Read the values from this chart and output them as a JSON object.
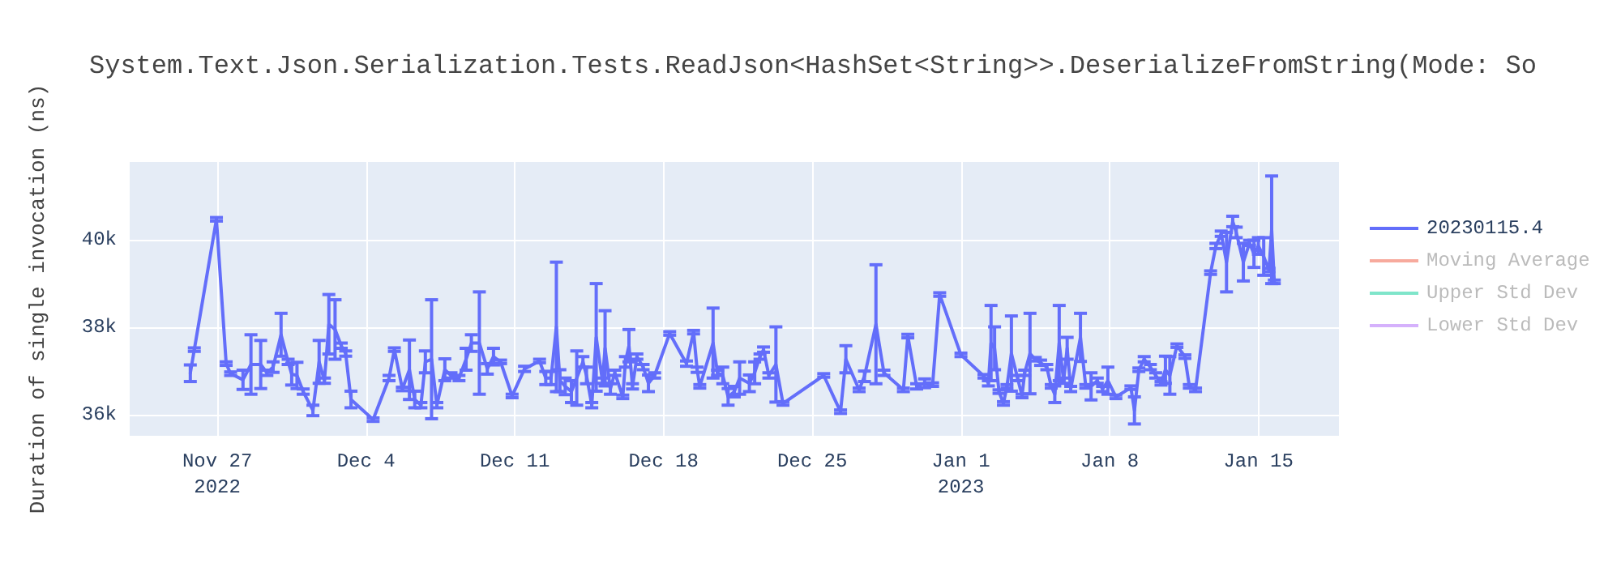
{
  "chart_data": {
    "type": "line",
    "title": "System.Text.Json.Serialization.Tests.ReadJson<HashSet<String>>.DeserializeFromString(Mode: So",
    "ylabel": "Duration of single invocation (ns)",
    "xlim": [
      "2022-11-22T21:00",
      "2023-01-18T19:00"
    ],
    "xticks": [
      {
        "value": "2022-11-27",
        "label": "Nov 27\n2022"
      },
      {
        "value": "2022-12-04",
        "label": "Dec 4"
      },
      {
        "value": "2022-12-11",
        "label": "Dec 11"
      },
      {
        "value": "2022-12-18",
        "label": "Dec 18"
      },
      {
        "value": "2022-12-25",
        "label": "Dec 25"
      },
      {
        "value": "2023-01-01",
        "label": "Jan 1\n2023"
      },
      {
        "value": "2023-01-08",
        "label": "Jan 8"
      },
      {
        "value": "2023-01-15",
        "label": "Jan 15"
      }
    ],
    "ylim": [
      35520,
      41780
    ],
    "yticks": [
      {
        "value": 36000,
        "label": "36k"
      },
      {
        "value": 38000,
        "label": "38k"
      },
      {
        "value": 40000,
        "label": "40k"
      }
    ],
    "grid": true,
    "legend": "top right",
    "marker": "none",
    "line_style": "solid",
    "series": [
      {
        "name": "20230115.4",
        "color": "#636efa",
        "x": [
          "2022-11-25T17:30",
          "2022-11-25T22:00",
          "2022-11-26T23:00",
          "2022-11-27T10:00",
          "2022-11-27T15:00",
          "2022-11-28T05:00",
          "2022-11-28T14:00",
          "2022-11-29T01:00",
          "2022-11-29T08:00",
          "2022-11-29T15:00",
          "2022-11-30T00:00",
          "2022-11-30T08:00",
          "2022-11-30T12:00",
          "2022-11-30T18:00",
          "2022-12-01T01:00",
          "2022-12-01T12:00",
          "2022-12-01T19:00",
          "2022-12-02T01:00",
          "2022-12-02T06:00",
          "2022-12-02T13:00",
          "2022-12-02T20:00",
          "2022-12-03T01:00",
          "2022-12-03T07:00",
          "2022-12-04T08:00",
          "2022-12-05T02:00",
          "2022-12-05T08:00",
          "2022-12-05T17:00",
          "2022-12-06T01:00",
          "2022-12-06T07:00",
          "2022-12-06T14:00",
          "2022-12-06T19:00",
          "2022-12-07T02:00",
          "2022-12-07T08:00",
          "2022-12-07T17:00",
          "2022-12-08T00:00",
          "2022-12-08T09:00",
          "2022-12-08T17:00",
          "2022-12-08T23:00",
          "2022-12-09T08:00",
          "2022-12-09T17:00",
          "2022-12-10T00:00",
          "2022-12-10T08:00",
          "2022-12-10T21:00",
          "2022-12-11T11:00",
          "2022-12-12T04:00",
          "2022-12-12T11:00",
          "2022-12-12T17:00",
          "2022-12-12T23:00",
          "2022-12-13T03:00",
          "2022-12-13T09:00",
          "2022-12-13T16:00",
          "2022-12-13T22:00",
          "2022-12-14T05:00",
          "2022-12-14T09:00",
          "2022-12-14T15:00",
          "2022-12-14T20:00",
          "2022-12-15T03:00",
          "2022-12-15T06:00",
          "2022-12-15T12:00",
          "2022-12-15T17:00",
          "2022-12-16T02:00",
          "2022-12-16T05:00",
          "2022-12-16T09:00",
          "2022-12-16T13:00",
          "2022-12-16T18:00",
          "2022-12-17T01:00",
          "2022-12-17T07:00",
          "2022-12-17T14:00",
          "2022-12-18T07:00",
          "2022-12-19T02:00",
          "2022-12-19T10:00",
          "2022-12-19T14:00",
          "2022-12-19T17:00",
          "2022-12-20T08:00",
          "2022-12-20T13:00",
          "2022-12-20T19:00",
          "2022-12-21T01:00",
          "2022-12-21T08:00",
          "2022-12-21T14:00",
          "2022-12-22T01:00",
          "2022-12-22T07:00",
          "2022-12-22T13:00",
          "2022-12-22T17:00",
          "2022-12-22T23:00",
          "2022-12-23T07:00",
          "2022-12-23T15:00",
          "2022-12-25T13:00",
          "2022-12-26T08:00",
          "2022-12-26T14:00",
          "2022-12-27T05:00",
          "2022-12-27T11:00",
          "2022-12-28T00:00",
          "2022-12-28T09:00",
          "2022-12-29T07:00",
          "2022-12-29T12:00",
          "2022-12-29T22:00",
          "2022-12-30T07:00",
          "2022-12-30T16:00",
          "2022-12-31T00:00",
          "2023-01-01T00:00",
          "2023-01-02T02:00",
          "2023-01-02T07:00",
          "2023-01-02T10:00",
          "2023-01-02T14:00",
          "2023-01-02T19:00",
          "2023-01-03T00:00",
          "2023-01-03T04:00",
          "2023-01-03T09:00",
          "2023-01-03T16:00",
          "2023-01-03T21:00",
          "2023-01-04T00:00",
          "2023-01-04T06:00",
          "2023-01-04T12:00",
          "2023-01-04T18:00",
          "2023-01-05T01:00",
          "2023-01-05T06:00",
          "2023-01-05T10:00",
          "2023-01-05T15:00",
          "2023-01-05T20:00",
          "2023-01-06T00:00",
          "2023-01-06T04:00",
          "2023-01-06T15:00",
          "2023-01-06T21:00",
          "2023-01-07T03:00",
          "2023-01-07T10:00",
          "2023-01-07T16:00",
          "2023-01-07T22:00",
          "2023-01-08T07:00",
          "2023-01-09T00:00",
          "2023-01-09T04:00",
          "2023-01-09T09:00",
          "2023-01-09T15:00",
          "2023-01-09T22:00",
          "2023-01-10T04:00",
          "2023-01-10T10:00",
          "2023-01-10T15:00",
          "2023-01-10T20:00",
          "2023-01-11T04:00",
          "2023-01-11T13:00",
          "2023-01-11T18:00",
          "2023-01-12T01:00",
          "2023-01-12T18:00",
          "2023-01-13T00:00",
          "2023-01-13T06:00",
          "2023-01-13T12:00",
          "2023-01-13T19:00",
          "2023-01-13T23:00",
          "2023-01-14T07:00",
          "2023-01-14T14:00",
          "2023-01-14T19:00",
          "2023-01-15T00:00",
          "2023-01-15T06:00",
          "2023-01-15T12:00",
          "2023-01-15T15:00",
          "2023-01-15T18:00"
        ],
        "values": [
          36950,
          37490,
          40470,
          37170,
          36940,
          36800,
          37150,
          37150,
          36960,
          37090,
          37830,
          37210,
          36930,
          36900,
          36530,
          36100,
          37210,
          36780,
          38070,
          37950,
          37580,
          37400,
          36350,
          35890,
          36840,
          37490,
          36590,
          37030,
          36350,
          36220,
          37210,
          37270,
          36220,
          37030,
          36900,
          36840,
          37270,
          37640,
          37640,
          37050,
          37330,
          37210,
          36430,
          37050,
          37230,
          36840,
          36840,
          38010,
          36780,
          36650,
          36530,
          36840,
          37210,
          36900,
          36220,
          37770,
          36780,
          37520,
          36590,
          36960,
          36410,
          37210,
          37580,
          36650,
          37330,
          37090,
          36720,
          36900,
          37860,
          37170,
          37890,
          37030,
          36650,
          37640,
          36960,
          36900,
          36410,
          36530,
          36840,
          36720,
          36960,
          37330,
          37490,
          36900,
          37150,
          36260,
          36900,
          36070,
          37270,
          36570,
          36880,
          38070,
          36960,
          36570,
          37800,
          36650,
          36720,
          36690,
          38750,
          37370,
          36880,
          36720,
          37640,
          37520,
          36530,
          36260,
          36650,
          37400,
          36840,
          36430,
          36960,
          37400,
          37270,
          37190,
          37090,
          36650,
          36470,
          37640,
          36780,
          37520,
          36590,
          37770,
          36650,
          36650,
          36780,
          36590,
          36780,
          36410,
          36620,
          36100,
          37030,
          37270,
          37090,
          36900,
          36720,
          37030,
          36900,
          37580,
          37330,
          36650,
          36570,
          39250,
          39860,
          40140,
          39490,
          40420,
          40170,
          39490,
          39930,
          39680,
          39860,
          39620,
          39310,
          40230,
          39040
        ],
        "errors": [
          190,
          40,
          40,
          40,
          40,
          220,
          680,
          550,
          60,
          120,
          490,
          60,
          250,
          300,
          60,
          120,
          490,
          60,
          680,
          680,
          60,
          60,
          190,
          40,
          60,
          40,
          40,
          680,
          190,
          60,
          250,
          1360,
          60,
          250,
          60,
          60,
          250,
          190,
          1170,
          120,
          190,
          40,
          40,
          60,
          40,
          150,
          150,
          1480,
          250,
          190,
          250,
          620,
          120,
          190,
          60,
          1230,
          60,
          860,
          120,
          60,
          40,
          120,
          370,
          60,
          60,
          60,
          190,
          60,
          40,
          60,
          40,
          60,
          40,
          800,
          60,
          190,
          190,
          120,
          370,
          190,
          250,
          60,
          60,
          60,
          860,
          40,
          40,
          40,
          310,
          40,
          120,
          1360,
          60,
          40,
          40,
          60,
          100,
          40,
          40,
          40,
          40,
          60,
          860,
          490,
          40,
          40,
          40,
          860,
          60,
          40,
          60,
          920,
          40,
          60,
          60,
          40,
          190,
          860,
          60,
          250,
          60,
          550,
          40,
          310,
          60,
          60,
          310,
          40,
          40,
          310,
          40,
          60,
          60,
          60,
          40,
          310,
          430,
          40,
          40,
          40,
          40,
          40,
          60,
          60,
          680,
          120,
          120,
          430,
          60,
          310,
          190,
          430,
          40,
          1230,
          40
        ]
      },
      {
        "name": "Moving Average",
        "color": "#ef553b"
      },
      {
        "name": "Upper Std Dev",
        "color": "#00cc96"
      },
      {
        "name": "Lower Std Dev",
        "color": "#ab63fa"
      }
    ]
  }
}
